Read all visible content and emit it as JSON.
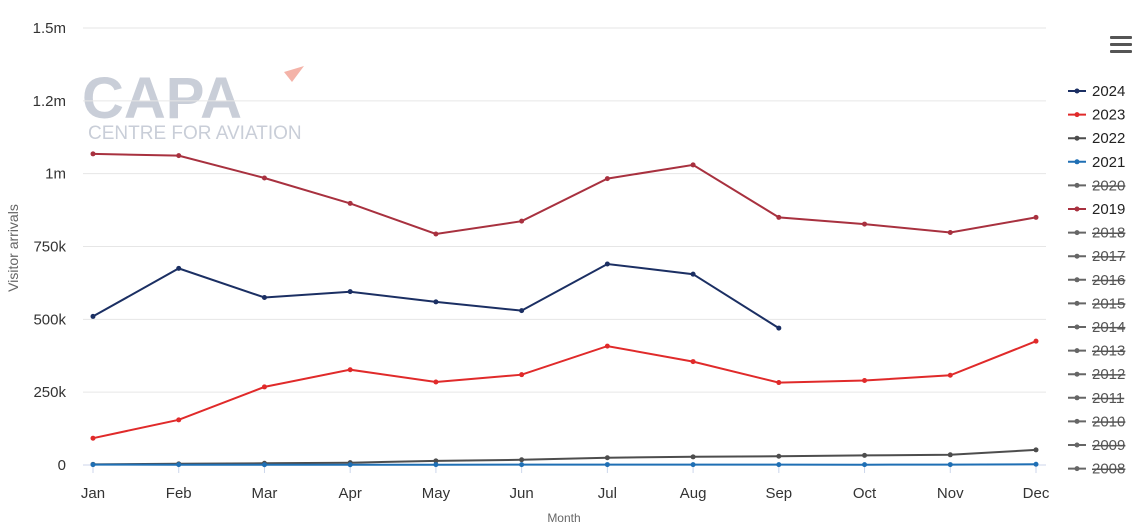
{
  "watermark": {
    "brand": "CAPA",
    "tagline": "CENTRE FOR AVIATION"
  },
  "menu": {
    "icon": "hamburger-menu-icon"
  },
  "chart_data": {
    "type": "line",
    "xlabel": "Month",
    "ylabel": "Visitor arrivals",
    "categories": [
      "Jan",
      "Feb",
      "Mar",
      "Apr",
      "May",
      "Jun",
      "Jul",
      "Aug",
      "Sep",
      "Oct",
      "Nov",
      "Dec"
    ],
    "ylim": [
      0,
      1500000
    ],
    "yticks": [
      0,
      250000,
      500000,
      750000,
      1000000,
      1250000,
      1500000
    ],
    "ytick_labels": [
      "0",
      "250k",
      "500k",
      "750k",
      "1m",
      "1.2m",
      "1.5m"
    ],
    "grid": true,
    "legend": "right",
    "series": [
      {
        "name": "2024",
        "color": "#1b2f63",
        "visible": true,
        "values": [
          510000,
          675000,
          575000,
          595000,
          560000,
          530000,
          690000,
          655000,
          470000,
          null,
          null,
          null
        ]
      },
      {
        "name": "2023",
        "color": "#e02a2a",
        "visible": true,
        "values": [
          92000,
          155000,
          268000,
          327000,
          285000,
          310000,
          408000,
          355000,
          283000,
          290000,
          308000,
          425000
        ]
      },
      {
        "name": "2022",
        "color": "#4d4d4d",
        "visible": true,
        "values": [
          2000,
          4000,
          6000,
          8000,
          14000,
          18000,
          25000,
          28000,
          30000,
          33000,
          35000,
          52000
        ]
      },
      {
        "name": "2021",
        "color": "#1f6fb4",
        "visible": true,
        "values": [
          1500,
          1200,
          1000,
          1000,
          1200,
          1300,
          1500,
          1400,
          1300,
          1200,
          1500,
          2500
        ]
      },
      {
        "name": "2020",
        "color": "#4d4d4d",
        "visible": false
      },
      {
        "name": "2019",
        "color": "#a8313f",
        "visible": true,
        "values": [
          1068000,
          1062000,
          985000,
          898000,
          793000,
          837000,
          983000,
          1030000,
          850000,
          827000,
          798000,
          850000
        ]
      },
      {
        "name": "2018",
        "color": "#4d4d4d",
        "visible": false
      },
      {
        "name": "2017",
        "color": "#4d4d4d",
        "visible": false
      },
      {
        "name": "2016",
        "color": "#4d4d4d",
        "visible": false
      },
      {
        "name": "2015",
        "color": "#4d4d4d",
        "visible": false
      },
      {
        "name": "2014",
        "color": "#4d4d4d",
        "visible": false
      },
      {
        "name": "2013",
        "color": "#4d4d4d",
        "visible": false
      },
      {
        "name": "2012",
        "color": "#4d4d4d",
        "visible": false
      },
      {
        "name": "2011",
        "color": "#4d4d4d",
        "visible": false
      },
      {
        "name": "2010",
        "color": "#4d4d4d",
        "visible": false
      },
      {
        "name": "2009",
        "color": "#4d4d4d",
        "visible": false
      },
      {
        "name": "2008",
        "color": "#4d4d4d",
        "visible": false
      }
    ]
  }
}
